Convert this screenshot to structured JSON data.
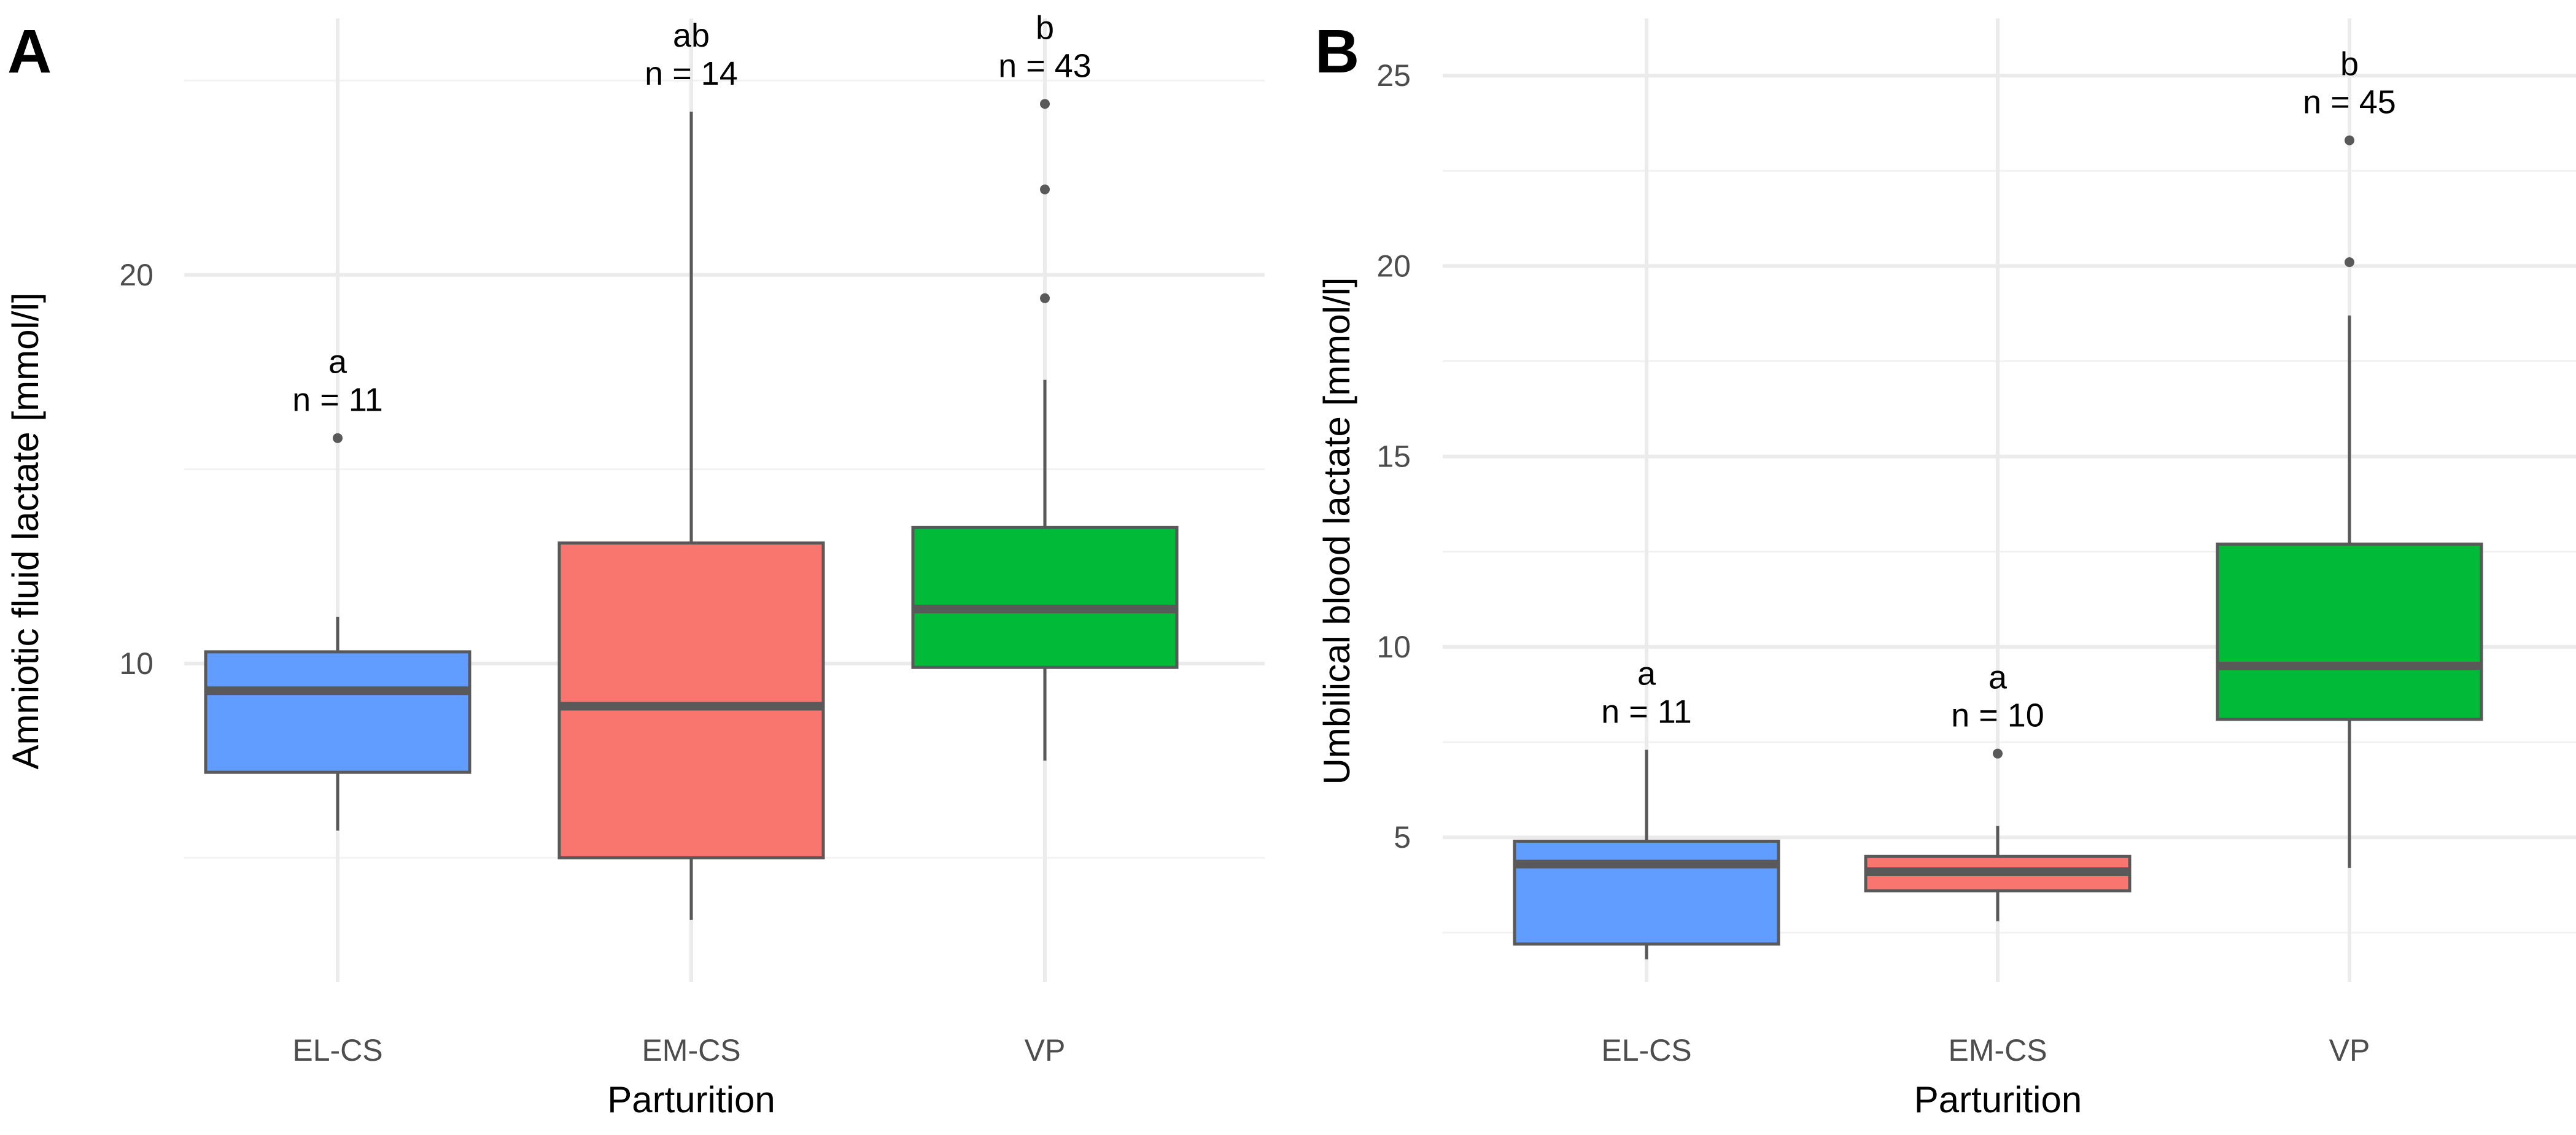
{
  "colors": {
    "EL-CS": "#619cff",
    "EM-CS": "#f8766d",
    "VP": "#00ba38"
  },
  "chart_data": [
    {
      "type": "box",
      "panel_label": "A",
      "xlabel": "Parturition",
      "ylabel": "Amniotic fluid lactate [mmol/l]",
      "categories": [
        "EL-CS",
        "EM-CS",
        "VP"
      ],
      "ylim": [
        1.8,
        26.6
      ],
      "yticks": [
        10,
        20
      ],
      "yminor": [
        5,
        15,
        25
      ],
      "boxes": [
        {
          "category": "EL-CS",
          "whisker_low": 5.7,
          "q1": 7.2,
          "median": 9.3,
          "q3": 10.3,
          "whisker_high": 11.2,
          "outliers": [
            15.8
          ],
          "letter": "a",
          "n_label": "n = 11"
        },
        {
          "category": "EM-CS",
          "whisker_low": 3.4,
          "q1": 5.0,
          "median": 8.9,
          "q3": 13.1,
          "whisker_high": 24.2,
          "outliers": [],
          "letter": "ab",
          "n_label": "n = 14"
        },
        {
          "category": "VP",
          "whisker_low": 7.5,
          "q1": 9.9,
          "median": 11.4,
          "q3": 13.5,
          "whisker_high": 17.3,
          "outliers": [
            19.4,
            22.2,
            24.4
          ],
          "letter": "b",
          "n_label": "n = 43"
        }
      ]
    },
    {
      "type": "box",
      "panel_label": "B",
      "xlabel": "Parturition",
      "ylabel": "Umbilical blood lactate [mmol/l]",
      "categories": [
        "EL-CS",
        "EM-CS",
        "VP"
      ],
      "ylim": [
        1.2,
        26.5
      ],
      "yticks": [
        5,
        10,
        15,
        20,
        25
      ],
      "yminor": [
        2.5,
        7.5,
        12.5,
        17.5,
        22.5
      ],
      "boxes": [
        {
          "category": "EL-CS",
          "whisker_low": 1.8,
          "q1": 2.2,
          "median": 4.3,
          "q3": 4.9,
          "whisker_high": 7.3,
          "outliers": [],
          "letter": "a",
          "n_label": "n = 11"
        },
        {
          "category": "EM-CS",
          "whisker_low": 2.8,
          "q1": 3.6,
          "median": 4.1,
          "q3": 4.5,
          "whisker_high": 5.3,
          "outliers": [
            7.2
          ],
          "letter": "a",
          "n_label": "n = 10"
        },
        {
          "category": "VP",
          "whisker_low": 4.2,
          "q1": 8.1,
          "median": 9.5,
          "q3": 12.7,
          "whisker_high": 18.7,
          "outliers": [
            20.1,
            23.3
          ],
          "letter": "b",
          "n_label": "n = 45"
        }
      ]
    }
  ]
}
